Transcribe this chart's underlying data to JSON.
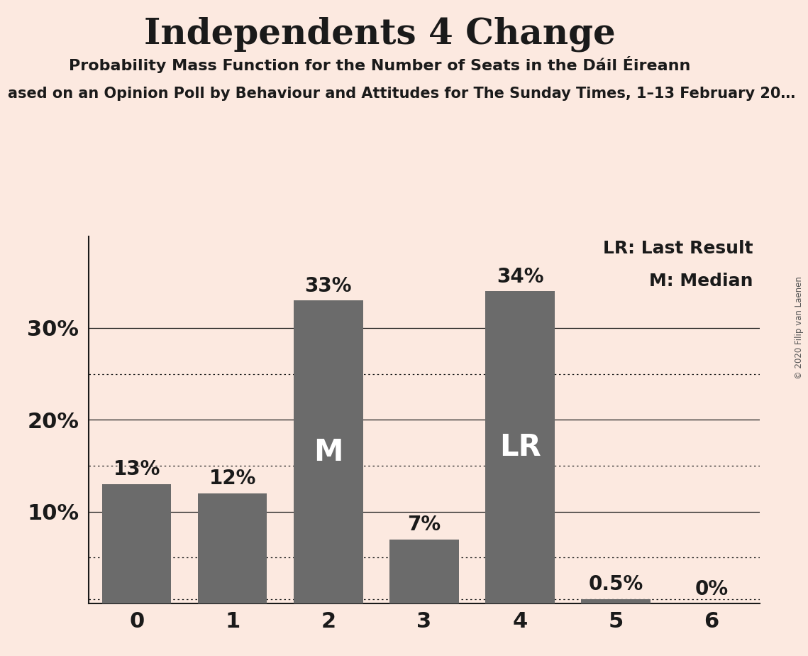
{
  "title": "Independents 4 Change",
  "subtitle": "Probability Mass Function for the Number of Seats in the Dáil Éireann",
  "subtitle2": "ased on an Opinion Poll by Behaviour and Attitudes for The Sunday Times, 1–13 February 20…",
  "copyright": "© 2020 Filip van Laenen",
  "categories": [
    0,
    1,
    2,
    3,
    4,
    5,
    6
  ],
  "values": [
    0.13,
    0.12,
    0.33,
    0.07,
    0.34,
    0.005,
    0.0
  ],
  "bar_color": "#6b6b6b",
  "background_color": "#fce9e0",
  "bar_labels": [
    "13%",
    "12%",
    "33%",
    "7%",
    "34%",
    "0.5%",
    "0%"
  ],
  "bar_inner_labels": [
    "",
    "",
    "M",
    "",
    "LR",
    "",
    ""
  ],
  "legend_line1": "LR: Last Result",
  "legend_line2": "M: Median",
  "ytick_labels": [
    "10%",
    "20%",
    "30%"
  ],
  "ytick_values": [
    0.1,
    0.2,
    0.3
  ],
  "solid_lines": [
    0.1,
    0.2,
    0.3
  ],
  "dotted_lines": [
    0.05,
    0.15,
    0.25
  ],
  "low_dotted_line": 0.005,
  "ylim": [
    0,
    0.4
  ],
  "title_fontsize": 36,
  "subtitle_fontsize": 16,
  "subtitle2_fontsize": 15,
  "bar_label_fontsize": 20,
  "bar_inner_label_fontsize": 30,
  "axis_tick_fontsize": 22,
  "ytick_fontsize": 22,
  "legend_fontsize": 18,
  "text_color": "#1a1a1a"
}
